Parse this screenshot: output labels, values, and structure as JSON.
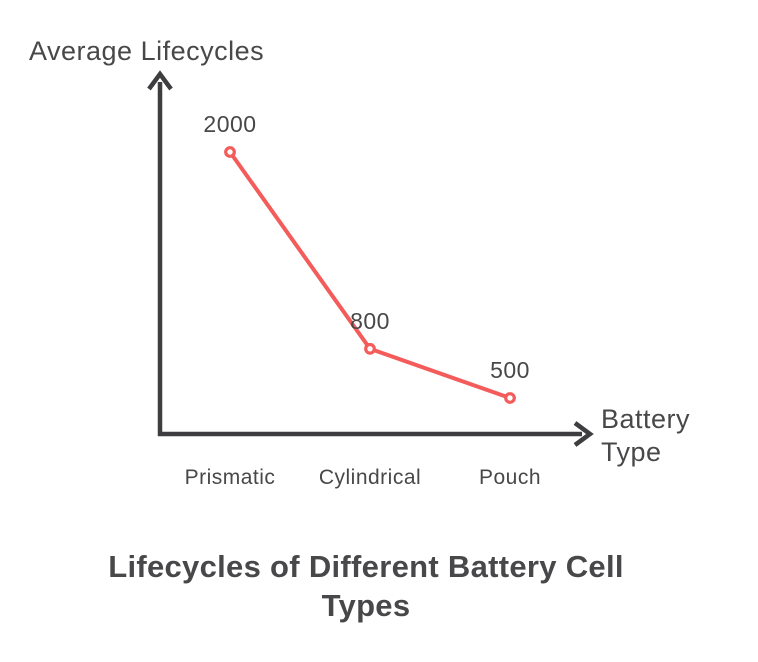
{
  "chart_data": {
    "type": "line",
    "categories": [
      "Prismatic",
      "Cylindrical",
      "Pouch"
    ],
    "values": [
      2000,
      800,
      500
    ],
    "title": "Lifecycles of Different Battery Cell Types",
    "xlabel": "Battery Type",
    "ylabel": "Average Lifecycles",
    "ylim": [
      0,
      2000
    ],
    "grid": false,
    "legend": false,
    "marker_style": "ring",
    "colors": {
      "line": "#f45b5b",
      "axis": "#3e3e40",
      "text": "#48484a",
      "background": "#ffffff"
    }
  }
}
